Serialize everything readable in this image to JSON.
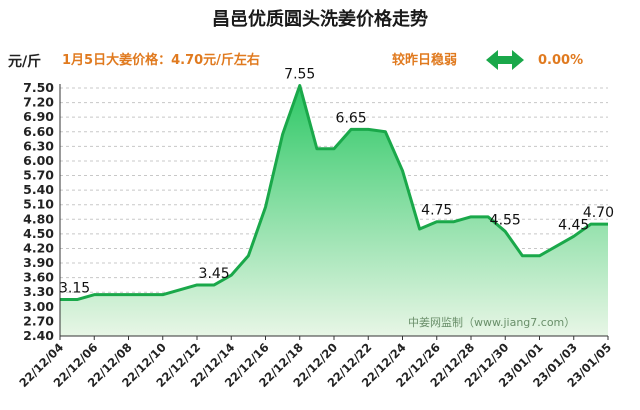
{
  "chart_data": {
    "type": "area",
    "title": "昌邑优质圆头洗姜价格走势",
    "ylabel": "元/斤",
    "ylim": [
      2.4,
      7.5
    ],
    "yticks": [
      "2.40",
      "2.70",
      "3.00",
      "3.30",
      "3.60",
      "3.90",
      "4.20",
      "4.50",
      "4.80",
      "5.10",
      "5.40",
      "5.70",
      "6.00",
      "6.30",
      "6.60",
      "6.90",
      "7.20",
      "7.50"
    ],
    "grid": true,
    "info_text": "1月5日大姜价格：4.70元/斤左右",
    "compare_text": "较昨日稳弱",
    "change_text": "0.00%",
    "watermark": "中姜网监制（www.jiang7.com）",
    "xtick_labels": [
      "22/12/04",
      "22/12/06",
      "22/12/08",
      "22/12/10",
      "22/12/12",
      "22/12/14",
      "22/12/16",
      "22/12/18",
      "22/12/20",
      "22/12/22",
      "22/12/24",
      "22/12/26",
      "22/12/28",
      "22/12/30",
      "23/01/01",
      "23/01/03",
      "23/01/05"
    ],
    "x": [
      "22/12/04",
      "22/12/05",
      "22/12/06",
      "22/12/07",
      "22/12/08",
      "22/12/09",
      "22/12/10",
      "22/12/11",
      "22/12/12",
      "22/12/13",
      "22/12/14",
      "22/12/15",
      "22/12/16",
      "22/12/17",
      "22/12/18",
      "22/12/19",
      "22/12/20",
      "22/12/21",
      "22/12/22",
      "22/12/23",
      "22/12/24",
      "22/12/25",
      "22/12/26",
      "22/12/27",
      "22/12/28",
      "22/12/29",
      "22/12/30",
      "22/12/31",
      "23/01/01",
      "23/01/02",
      "23/01/03",
      "23/01/04",
      "23/01/05"
    ],
    "values": [
      3.15,
      3.15,
      3.25,
      3.25,
      3.25,
      3.25,
      3.25,
      3.35,
      3.45,
      3.45,
      3.65,
      4.05,
      5.05,
      6.55,
      7.55,
      6.25,
      6.25,
      6.65,
      6.65,
      6.6,
      5.8,
      4.6,
      4.75,
      4.75,
      4.85,
      4.85,
      4.55,
      4.05,
      4.05,
      4.25,
      4.45,
      4.7,
      4.7
    ],
    "data_labels": [
      {
        "index": 0,
        "text": "3.15"
      },
      {
        "index": 9,
        "text": "3.45"
      },
      {
        "index": 14,
        "text": "7.55"
      },
      {
        "index": 17,
        "text": "6.65"
      },
      {
        "index": 22,
        "text": "4.75"
      },
      {
        "index": 26,
        "text": "4.55"
      },
      {
        "index": 30,
        "text": "4.45"
      },
      {
        "index": 32,
        "text": "4.70"
      }
    ],
    "colors": {
      "line": "#1aa84a",
      "fill_top": "#2ec866",
      "fill_bottom": "#e8f6e6",
      "arrow": "#1aa84a",
      "info": "#e07a1f",
      "grid": "#c8c8c8"
    }
  }
}
